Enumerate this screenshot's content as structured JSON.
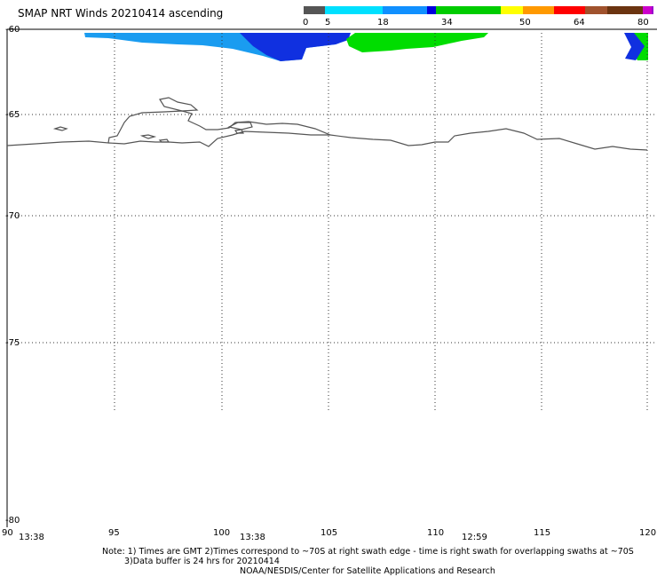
{
  "title": "SMAP NRT Winds 20210414 ascending",
  "colorbar": {
    "labels": [
      "0",
      "5",
      "18",
      "34",
      "50",
      "64",
      "80"
    ],
    "colors": [
      "#555555",
      "#00e0ff",
      "#1090ff",
      "#0000dd",
      "#00cc00",
      "#ffff00",
      "#ff9900",
      "#ff0000",
      "#a0522d",
      "#6b3410",
      "#cc00cc",
      "#9900cc"
    ]
  },
  "axes": {
    "lat_labels": [
      "-60",
      "-65",
      "-70",
      "-75",
      "-80"
    ],
    "lon_labels": [
      "90",
      "95",
      "100",
      "105",
      "110",
      "115",
      "120"
    ]
  },
  "times": [
    "13:38",
    "13:38",
    "12:59"
  ],
  "notes": {
    "line1": "Note: 1) Times are GMT 2)Times correspond to ~70S at right swath edge - time is right swath for overlapping swaths at ~70S",
    "line2": "3)Data buffer is 24 hrs for 20210414",
    "line3": "NOAA/NESDIS/Center for Satellite Applications and Research"
  }
}
